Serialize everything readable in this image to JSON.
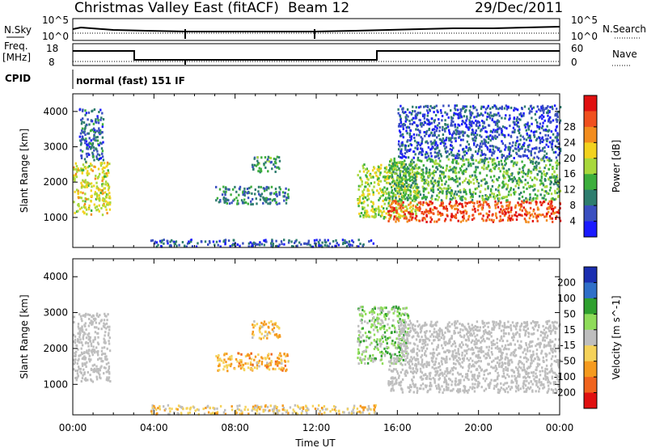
{
  "header": {
    "title": "Christmas Valley East (fitACF)",
    "beam": "Beam 12",
    "date": "29/Dec/2011"
  },
  "strip_labels": {
    "nsky": "N.Sky",
    "nsky_tick_top": "10^5",
    "nsky_tick_bottom": "10^0",
    "nsearch": "N.Search",
    "nsearch_tick_top": "10^5",
    "nsearch_tick_bottom": "10^0",
    "freq_top": "Freq.",
    "freq_bottom": "[MHz]",
    "freq_tick_top": "18",
    "freq_tick_bottom": "8",
    "nave": "Nave",
    "nave_tick_top": "60",
    "nave_tick_bottom": "0",
    "cpid": "CPID",
    "mode": "normal (fast) 151 IF"
  },
  "chart_data": [
    {
      "type": "heatmap",
      "name": "power",
      "ylabel": "Slant Range [km]",
      "yticks": [
        1000,
        2000,
        3000,
        4000
      ],
      "ylim": [
        150,
        4500
      ],
      "xticks": [
        "00:00",
        "04:00",
        "08:00",
        "12:00",
        "16:00",
        "20:00",
        "00:00"
      ],
      "xlim_hours": [
        0,
        24
      ],
      "colorbar": {
        "label": "Power [dB]",
        "ticks": [
          "4",
          "8",
          "12",
          "16",
          "20",
          "24",
          "28"
        ],
        "colors": [
          "#1a1aff",
          "#3a4fc0",
          "#2e7d6e",
          "#3cae3c",
          "#a8d83c",
          "#f2d21e",
          "#f28c1e",
          "#f0501e",
          "#e01010"
        ]
      },
      "echo_regions": [
        {
          "t": [
            0.0,
            1.8
          ],
          "range": [
            1100,
            2600
          ],
          "power_db": 18
        },
        {
          "t": [
            0.3,
            1.5
          ],
          "range": [
            2600,
            4100
          ],
          "power_db": 6
        },
        {
          "t": [
            8.8,
            10.2
          ],
          "range": [
            2300,
            2750
          ],
          "power_db": 10
        },
        {
          "t": [
            7.0,
            10.6
          ],
          "range": [
            1400,
            1900
          ],
          "power_db": 8
        },
        {
          "t": [
            3.8,
            14.8
          ],
          "range": [
            200,
            400
          ],
          "power_db": 5
        },
        {
          "t": [
            14.0,
            17.0
          ],
          "range": [
            1000,
            2600
          ],
          "power_db": 16
        },
        {
          "t": [
            15.5,
            24.0
          ],
          "range": [
            900,
            1500
          ],
          "power_db": 28
        },
        {
          "t": [
            15.5,
            24.0
          ],
          "range": [
            1500,
            2700
          ],
          "power_db": 12
        },
        {
          "t": [
            16.0,
            24.0
          ],
          "range": [
            2700,
            4200
          ],
          "power_db": 4
        }
      ]
    },
    {
      "type": "heatmap",
      "name": "velocity",
      "ylabel": "Slant Range [km]",
      "yticks": [
        1000,
        2000,
        3000,
        4000
      ],
      "ylim": [
        150,
        4500
      ],
      "xlabel": "Time UT",
      "xticks": [
        "00:00",
        "04:00",
        "08:00",
        "12:00",
        "16:00",
        "20:00",
        "00:00"
      ],
      "xlim_hours": [
        0,
        24
      ],
      "colorbar": {
        "label": "Velocity [m s^-1]",
        "ticks": [
          "200",
          "100",
          "50",
          "15",
          "-15",
          "-50",
          "-100",
          "-200"
        ],
        "colors": [
          "#1a2eb0",
          "#2f6fc8",
          "#2fa02f",
          "#8fdc5a",
          "#bebebe",
          "#f5d25a",
          "#f59a1e",
          "#f0641e",
          "#e01010"
        ]
      },
      "echo_regions": [
        {
          "t": [
            0.0,
            1.8
          ],
          "range": [
            1100,
            3000
          ],
          "velocity": 0
        },
        {
          "t": [
            8.8,
            10.2
          ],
          "range": [
            2300,
            2800
          ],
          "velocity": -60
        },
        {
          "t": [
            7.0,
            10.6
          ],
          "range": [
            1400,
            1900
          ],
          "velocity": -80
        },
        {
          "t": [
            3.8,
            15.0
          ],
          "range": [
            200,
            450
          ],
          "velocity": -40
        },
        {
          "t": [
            14.0,
            16.5
          ],
          "range": [
            1600,
            3200
          ],
          "velocity": 40
        },
        {
          "t": [
            15.5,
            24.0
          ],
          "range": [
            800,
            1800
          ],
          "velocity": 0
        },
        {
          "t": [
            16.0,
            24.0
          ],
          "range": [
            1800,
            2800
          ],
          "velocity": 0
        }
      ]
    }
  ]
}
